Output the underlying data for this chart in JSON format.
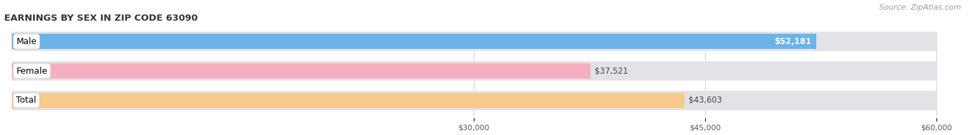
{
  "title": "EARNINGS BY SEX IN ZIP CODE 63090",
  "source": "Source: ZipAtlas.com",
  "categories": [
    "Male",
    "Female",
    "Total"
  ],
  "values": [
    52181,
    37521,
    43603
  ],
  "bar_colors": [
    "#6ab4e8",
    "#f5afc0",
    "#f8c98a"
  ],
  "track_color": "#e2e2e8",
  "label_texts": [
    "$52,181",
    "$37,521",
    "$43,603"
  ],
  "xmin": 0,
  "xmax": 60000,
  "xticks": [
    30000,
    45000,
    60000
  ],
  "xtick_labels": [
    "$30,000",
    "$45,000",
    "$60,000"
  ],
  "background_color": "#ffffff",
  "title_fontsize": 9.5,
  "source_fontsize": 8,
  "label_fontsize": 8.5,
  "cat_fontsize": 9
}
